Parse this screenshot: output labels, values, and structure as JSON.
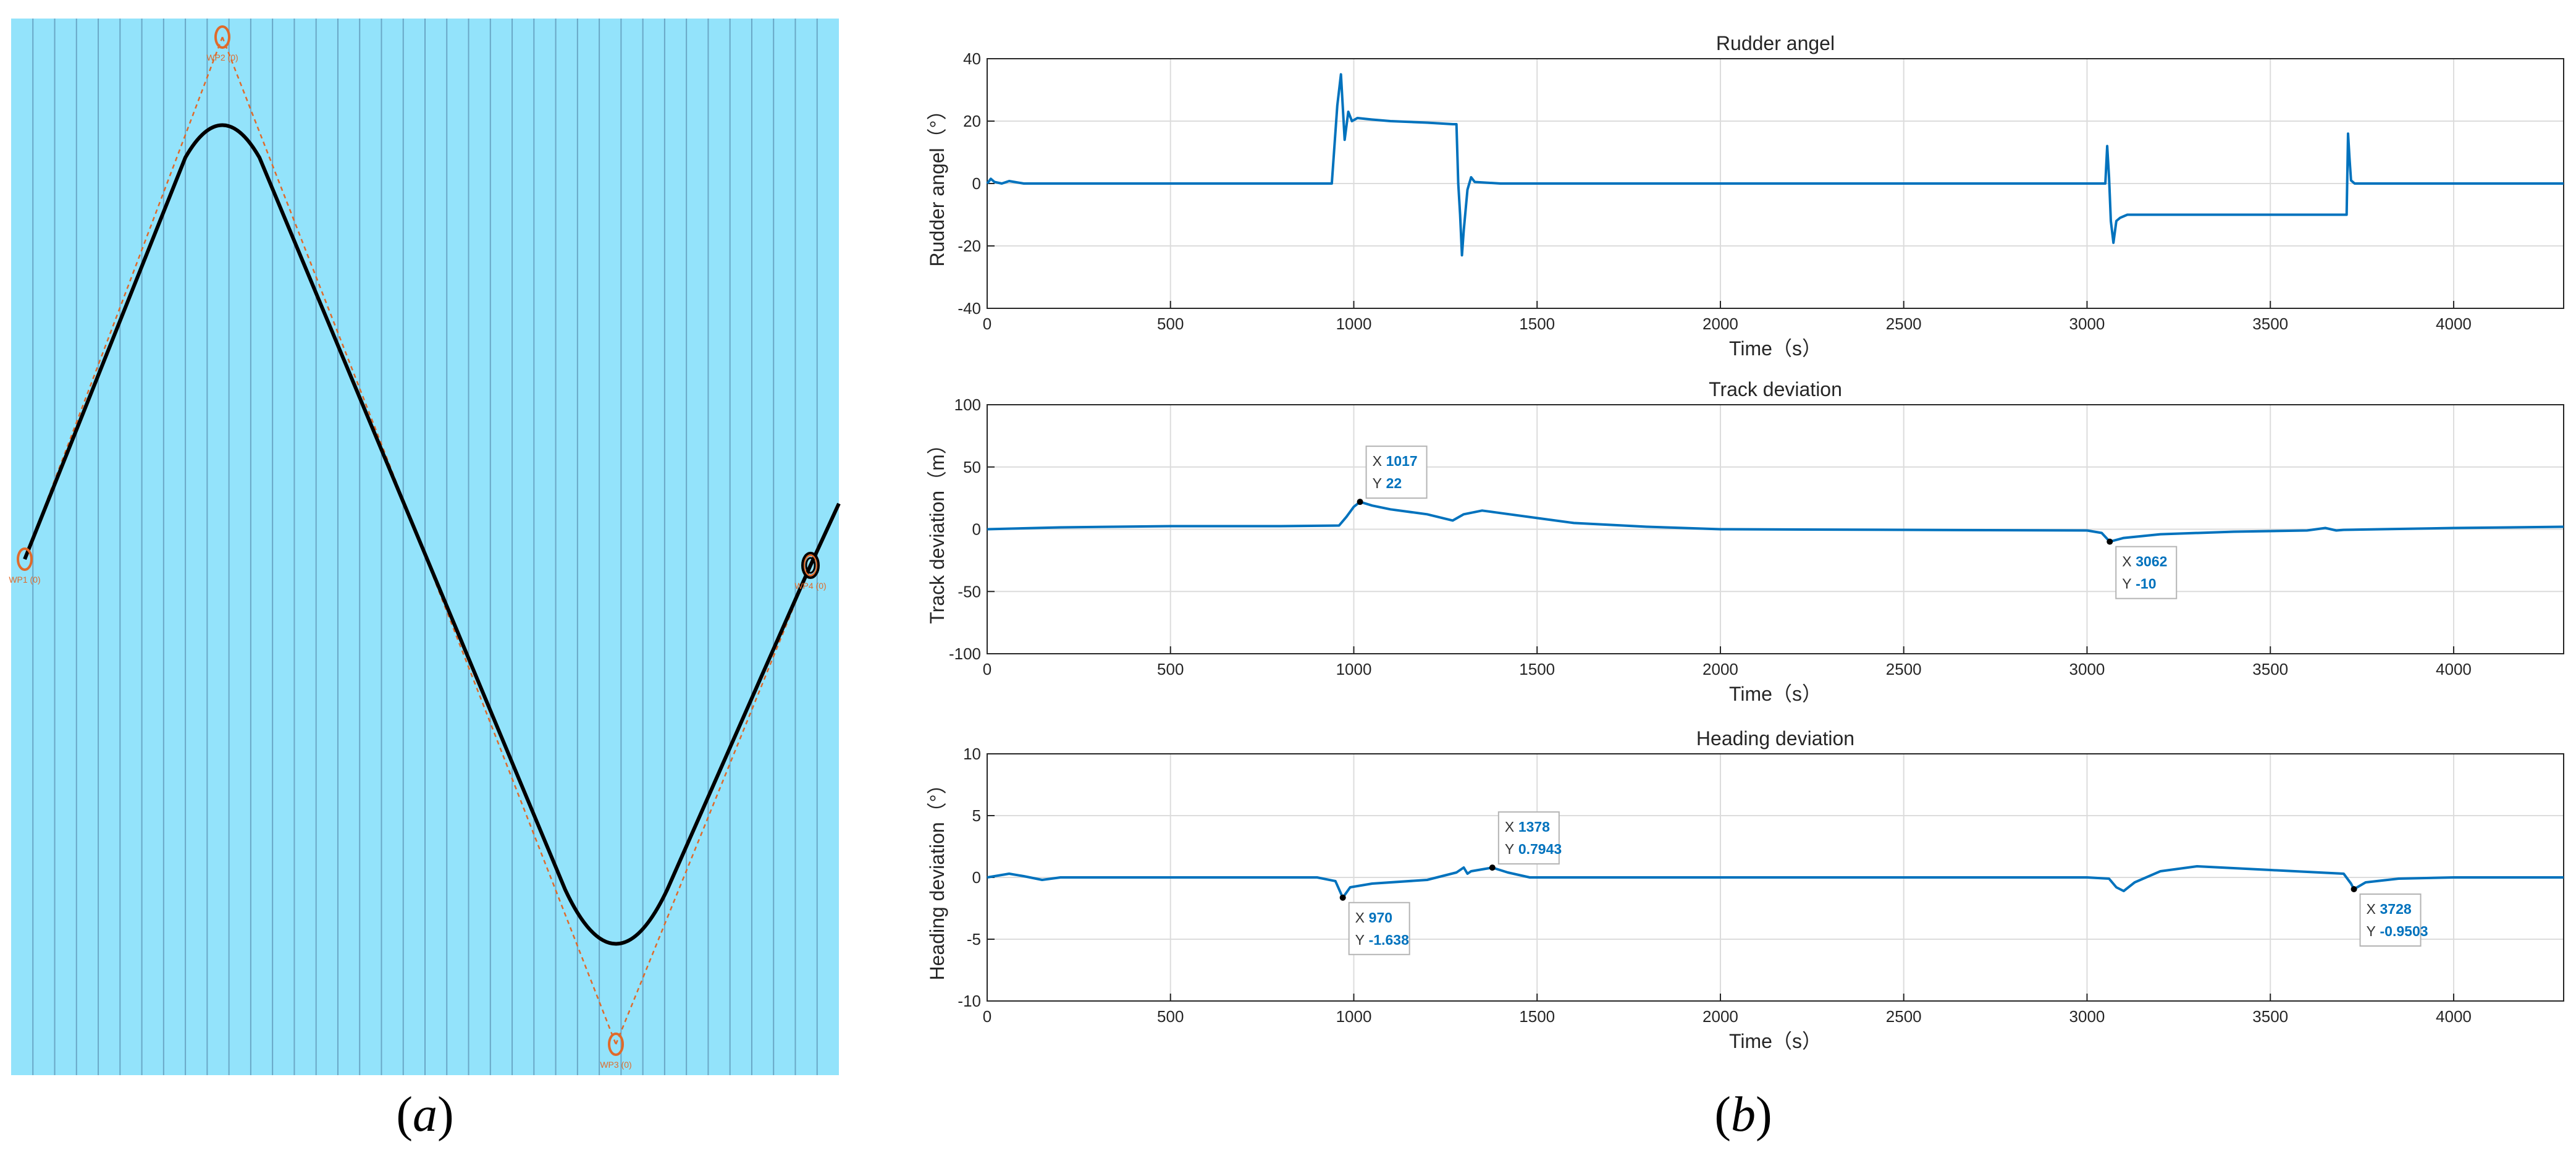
{
  "panel_a": {
    "caption_letter": "a",
    "waypoints": [
      "WP1 (0)",
      "WP2 (0)",
      "WP3 (0)",
      "WP4 (0)"
    ],
    "colors": {
      "sea": "#93e3fb",
      "grid": "#5a8fb0",
      "track": "#000000",
      "waypoint": "#e06a2a"
    }
  },
  "panel_b": {
    "caption_letter": "b"
  },
  "chart_data": [
    {
      "type": "line",
      "title": "Rudder angel",
      "xlabel": "Time（s）",
      "ylabel": "Rudder angel（°）",
      "xlim": [
        0,
        4300
      ],
      "ylim": [
        -40,
        40
      ],
      "xticks": [
        0,
        500,
        1000,
        1500,
        2000,
        2500,
        3000,
        3500,
        4000
      ],
      "yticks": [
        -40,
        -20,
        0,
        20,
        40
      ],
      "grid": true,
      "series": [
        {
          "name": "Rudder angle",
          "color": "#0072bd",
          "x": [
            0,
            10,
            20,
            40,
            60,
            100,
            500,
            940,
            955,
            965,
            975,
            985,
            995,
            1010,
            1050,
            1100,
            1200,
            1270,
            1280,
            1285,
            1290,
            1295,
            1300,
            1310,
            1320,
            1330,
            1400,
            1500,
            2000,
            2500,
            3000,
            3050,
            3055,
            3060,
            3065,
            3072,
            3080,
            3090,
            3100,
            3110,
            3200,
            3500,
            3700,
            3708,
            3712,
            3716,
            3720,
            3730,
            3800,
            4000,
            4300
          ],
          "y": [
            0,
            1.5,
            0.5,
            0,
            0.8,
            0,
            0,
            0,
            25,
            35,
            14,
            23,
            20,
            21,
            20.5,
            20,
            19.5,
            19,
            19,
            0,
            -10,
            -23,
            -15,
            -2,
            2,
            0.5,
            0,
            0,
            0,
            0,
            0,
            0,
            12,
            2,
            -12,
            -19,
            -12,
            -11,
            -10.5,
            -10,
            -10,
            -10,
            -10,
            -10,
            16,
            8,
            1,
            0,
            0,
            0,
            0
          ]
        }
      ],
      "annotations": []
    },
    {
      "type": "line",
      "title": "Track deviation",
      "xlabel": "Time（s）",
      "ylabel": "Track deviation（m）",
      "xlim": [
        0,
        4300
      ],
      "ylim": [
        -100,
        100
      ],
      "xticks": [
        0,
        500,
        1000,
        1500,
        2000,
        2500,
        3000,
        3500,
        4000
      ],
      "yticks": [
        -100,
        -50,
        0,
        50,
        100
      ],
      "grid": true,
      "series": [
        {
          "name": "Track deviation",
          "color": "#0072bd",
          "x": [
            0,
            200,
            500,
            800,
            960,
            980,
            1000,
            1017,
            1050,
            1100,
            1200,
            1270,
            1300,
            1350,
            1400,
            1500,
            1600,
            1800,
            2000,
            2500,
            3000,
            3040,
            3062,
            3100,
            3200,
            3400,
            3600,
            3650,
            3680,
            3700,
            3800,
            4000,
            4300
          ],
          "y": [
            0,
            1.5,
            2.5,
            2.5,
            3,
            10,
            18,
            22,
            19,
            16,
            12,
            7,
            12,
            15,
            13,
            9,
            5,
            2,
            0,
            -0.5,
            -1,
            -3,
            -10,
            -7,
            -4,
            -2,
            -1,
            1,
            -1,
            -0.5,
            0,
            1,
            2
          ]
        }
      ],
      "annotations": [
        {
          "x": 1017,
          "y": 22,
          "x_label": "X",
          "x_value": "1017",
          "y_label": "Y",
          "y_value": "22",
          "placement": "upper-right"
        },
        {
          "x": 3062,
          "y": -10,
          "x_label": "X",
          "x_value": "3062",
          "y_label": "Y",
          "y_value": "-10",
          "placement": "lower-right"
        }
      ]
    },
    {
      "type": "line",
      "title": "Heading deviation",
      "xlabel": "Time（s）",
      "ylabel": "Heading deviation（°）",
      "xlim": [
        0,
        4300
      ],
      "ylim": [
        -10,
        10
      ],
      "xticks": [
        0,
        500,
        1000,
        1500,
        2000,
        2500,
        3000,
        3500,
        4000
      ],
      "yticks": [
        -10,
        -5,
        0,
        5,
        10
      ],
      "grid": true,
      "series": [
        {
          "name": "Heading deviation",
          "color": "#0072bd",
          "x": [
            0,
            60,
            100,
            150,
            200,
            500,
            900,
            950,
            970,
            990,
            1050,
            1200,
            1280,
            1300,
            1310,
            1320,
            1378,
            1420,
            1480,
            1550,
            2000,
            2500,
            3000,
            3060,
            3080,
            3100,
            3130,
            3200,
            3300,
            3500,
            3700,
            3720,
            3728,
            3760,
            3850,
            4000,
            4300
          ],
          "y": [
            0,
            0.3,
            0.1,
            -0.2,
            0,
            0,
            0,
            -0.3,
            -1.638,
            -0.8,
            -0.5,
            -0.2,
            0.4,
            0.8,
            0.3,
            0.5,
            0.7943,
            0.4,
            0,
            0,
            0,
            0,
            0,
            -0.1,
            -0.8,
            -1.1,
            -0.4,
            0.5,
            0.9,
            0.6,
            0.3,
            -0.5,
            -0.9503,
            -0.4,
            -0.1,
            0,
            0
          ]
        }
      ],
      "annotations": [
        {
          "x": 970,
          "y": -1.638,
          "x_label": "X",
          "x_value": "970",
          "y_label": "Y",
          "y_value": "-1.638",
          "placement": "lower-right"
        },
        {
          "x": 1378,
          "y": 0.7943,
          "x_label": "X",
          "x_value": "1378",
          "y_label": "Y",
          "y_value": "0.7943",
          "placement": "upper-right"
        },
        {
          "x": 3728,
          "y": -0.9503,
          "x_label": "X",
          "x_value": "3728",
          "y_label": "Y",
          "y_value": "-0.9503",
          "placement": "lower-right"
        }
      ]
    }
  ]
}
